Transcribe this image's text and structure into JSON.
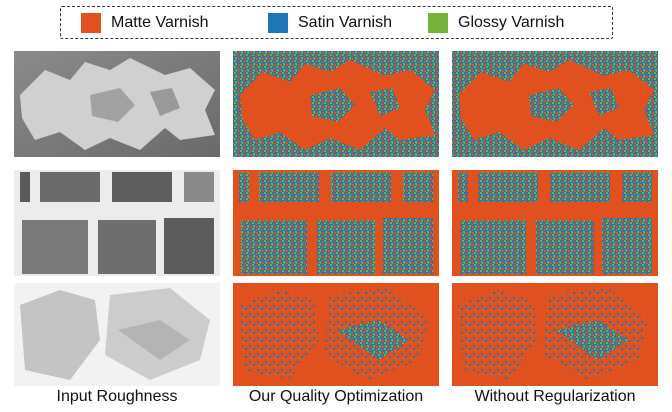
{
  "legend": {
    "items": [
      {
        "label": "Matte Varnish",
        "color": "#e0511f"
      },
      {
        "label": "Satin Varnish",
        "color": "#1c76b7"
      },
      {
        "label": "Glossy Varnish",
        "color": "#76b13a"
      }
    ]
  },
  "columns": {
    "input": "Input Roughness",
    "ours": "Our Quality Optimization",
    "noreg": "Without Regularization"
  },
  "rows": [
    {
      "pattern": "splatter"
    },
    {
      "pattern": "brick-grid"
    },
    {
      "pattern": "cracked-stone"
    }
  ],
  "colors": {
    "matte": "#e0511f",
    "satin": "#1c76b7",
    "glossy": "#76b13a",
    "gray_dark": "#6e6e6e",
    "gray_light": "#d6d6d6"
  }
}
